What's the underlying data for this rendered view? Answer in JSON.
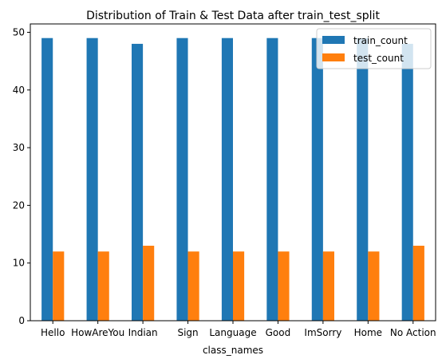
{
  "chart_data": {
    "type": "bar",
    "title": "Distribution of Train & Test Data after train_test_split",
    "xlabel": "class_names",
    "ylabel": "",
    "categories": [
      "Hello",
      "HowAreYou",
      "Indian",
      "Sign",
      "Language",
      "Good",
      "ImSorry",
      "Home",
      "No Action"
    ],
    "series": [
      {
        "name": "train_count",
        "color": "#1f77b4",
        "values": [
          49,
          49,
          48,
          49,
          49,
          49,
          49,
          49,
          48
        ]
      },
      {
        "name": "test_count",
        "color": "#ff7f0e",
        "values": [
          12,
          12,
          13,
          12,
          12,
          12,
          12,
          12,
          13
        ]
      }
    ],
    "ylim": [
      0,
      51.45
    ],
    "yticks": [
      0,
      10,
      20,
      30,
      40,
      50
    ],
    "grid": false,
    "legend": "top-right"
  }
}
